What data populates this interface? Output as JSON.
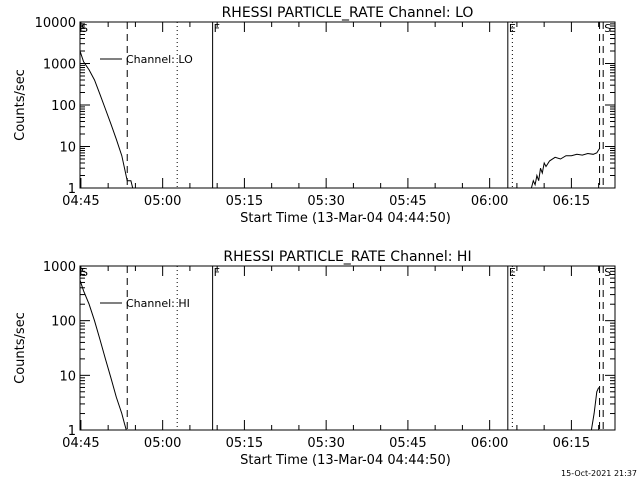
{
  "footer_timestamp": "15-Oct-2021 21:37",
  "colors": {
    "background": "#ffffff",
    "foreground": "#000000"
  },
  "chart_data": [
    {
      "type": "line",
      "title": "RHESSI PARTICLE_RATE Channel: LO",
      "xlabel": "Start Time (13-Mar-04 04:44:50)",
      "ylabel": "Counts/sec",
      "yscale": "log",
      "ylim": [
        1,
        10000
      ],
      "yticks": [
        {
          "value": 1,
          "label": "1"
        },
        {
          "value": 10,
          "label": "10"
        },
        {
          "value": 100,
          "label": "100"
        },
        {
          "value": 1000,
          "label": "1000"
        },
        {
          "value": 10000,
          "label": "10000"
        }
      ],
      "xlim": [
        "04:44:50",
        "06:23:00"
      ],
      "xticks": [
        "04:45",
        "05:00",
        "05:15",
        "05:30",
        "05:45",
        "06:00",
        "06:15"
      ],
      "legend": {
        "label": "Channel: LO",
        "placement": "top-left"
      },
      "markers": [
        {
          "time": "04:44:50",
          "label": "S",
          "style": "solid"
        },
        {
          "time": "04:53:30",
          "label": "",
          "style": "dashed"
        },
        {
          "time": "05:02:40",
          "label": "",
          "style": "dotted"
        },
        {
          "time": "05:09:10",
          "label": "F",
          "style": "solid"
        },
        {
          "time": "06:03:20",
          "label": "E",
          "style": "solid"
        },
        {
          "time": "06:04:10",
          "label": "",
          "style": "dotted"
        },
        {
          "time": "06:20:10",
          "label": "",
          "style": "dashed"
        },
        {
          "time": "06:20:50",
          "label": "S",
          "style": "dashed"
        }
      ],
      "series": [
        {
          "name": "Channel: LO",
          "segments": [
            {
              "x": [
                "04:44:50",
                "04:45:30",
                "04:46:30",
                "04:47:30",
                "04:48:30",
                "04:49:30",
                "04:50:30",
                "04:51:30",
                "04:52:30",
                "04:53:00",
                "04:53:30",
                "04:54:10",
                "04:54:30"
              ],
              "y": [
                2000,
                1100,
                700,
                400,
                180,
                80,
                35,
                15,
                6,
                3,
                1.5,
                1.5,
                1
              ]
            },
            {
              "x": [
                "06:07:40",
                "06:08:00",
                "06:08:20",
                "06:08:40",
                "06:09:00",
                "06:09:20",
                "06:09:40",
                "06:10:00",
                "06:10:20",
                "06:11:00",
                "06:12:00",
                "06:13:00",
                "06:14:00",
                "06:15:00",
                "06:16:00",
                "06:17:00",
                "06:18:00",
                "06:19:00",
                "06:19:40",
                "06:20:10"
              ],
              "y": [
                1,
                1.5,
                1.2,
                2,
                1.5,
                3,
                2.3,
                4,
                3.3,
                4.5,
                5.5,
                5,
                6,
                6,
                6.5,
                6.2,
                6.8,
                6.5,
                7,
                9
              ]
            }
          ]
        }
      ]
    },
    {
      "type": "line",
      "title": "RHESSI PARTICLE_RATE Channel: HI",
      "xlabel": "Start Time (13-Mar-04 04:44:50)",
      "ylabel": "Counts/sec",
      "yscale": "log",
      "ylim": [
        1,
        1000
      ],
      "yticks": [
        {
          "value": 1,
          "label": "1"
        },
        {
          "value": 10,
          "label": "10"
        },
        {
          "value": 100,
          "label": "100"
        },
        {
          "value": 1000,
          "label": "1000"
        }
      ],
      "xlim": [
        "04:44:50",
        "06:23:00"
      ],
      "xticks": [
        "04:45",
        "05:00",
        "05:15",
        "05:30",
        "05:45",
        "06:00",
        "06:15"
      ],
      "legend": {
        "label": "Channel: HI",
        "placement": "top-left"
      },
      "markers": [
        {
          "time": "04:44:50",
          "label": "S",
          "style": "solid"
        },
        {
          "time": "04:53:30",
          "label": "",
          "style": "dashed"
        },
        {
          "time": "05:02:40",
          "label": "",
          "style": "dotted"
        },
        {
          "time": "05:09:10",
          "label": "F",
          "style": "solid"
        },
        {
          "time": "06:03:20",
          "label": "E",
          "style": "solid"
        },
        {
          "time": "06:04:10",
          "label": "",
          "style": "dotted"
        },
        {
          "time": "06:20:10",
          "label": "",
          "style": "dashed"
        },
        {
          "time": "06:20:50",
          "label": "S",
          "style": "dashed"
        }
      ],
      "series": [
        {
          "name": "Channel: HI",
          "segments": [
            {
              "x": [
                "04:44:50",
                "04:45:30",
                "04:46:30",
                "04:47:30",
                "04:48:30",
                "04:49:30",
                "04:50:30",
                "04:51:30",
                "04:52:30",
                "04:53:00",
                "04:53:20"
              ],
              "y": [
                550,
                350,
                200,
                100,
                45,
                20,
                9,
                4,
                2,
                1.3,
                1
              ]
            },
            {
              "x": [
                "06:18:40",
                "06:19:10",
                "06:19:40",
                "06:20:00"
              ],
              "y": [
                1,
                2,
                5,
                6
              ]
            }
          ]
        }
      ]
    }
  ]
}
